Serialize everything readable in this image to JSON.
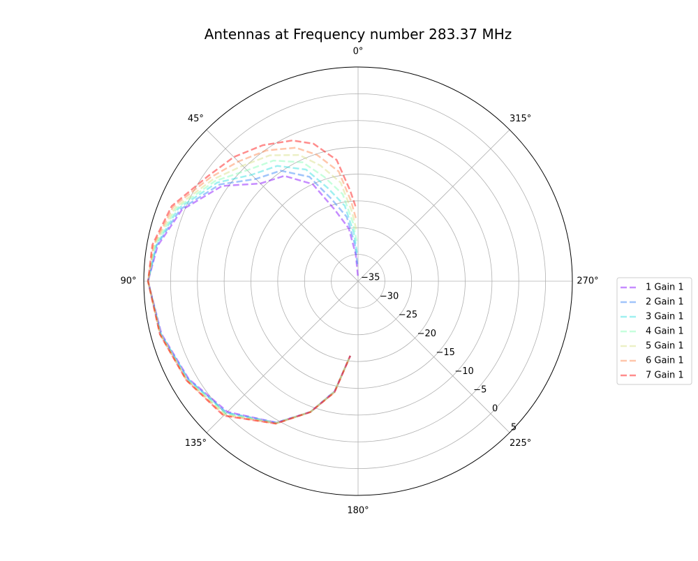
{
  "chart_data": {
    "type": "line",
    "subtype": "polar",
    "title": "Antennas at Frequency number 283.37 MHz",
    "theta_zero": "top",
    "theta_direction": "counterclockwise",
    "theta_ticks": [
      "0°",
      "45°",
      "90°",
      "135°",
      "180°",
      "225°",
      "270°",
      "315°"
    ],
    "r_ticks": [
      "−35",
      "−30",
      "−25",
      "−20",
      "−15",
      "−10",
      "−5",
      "0",
      "5"
    ],
    "r_tick_values": [
      -35,
      -30,
      -25,
      -20,
      -15,
      -10,
      -5,
      0,
      5
    ],
    "rlim": [
      -35,
      5
    ],
    "grid": true,
    "legend_placement": "right",
    "theta_deg": [
      2,
      5,
      10,
      18,
      25,
      35,
      45,
      55,
      68,
      80,
      90,
      105,
      120,
      135,
      150,
      160,
      168,
      174
    ],
    "series": [
      {
        "name": "1 Gain 1",
        "color": "#8000ff",
        "values": [
          -34,
          -30,
          -25,
          -21,
          -15,
          -11,
          -9.2,
          -4,
          0.5,
          3,
          4.2,
          3,
          1.5,
          -0.5,
          -4.5,
          -9,
          -14,
          -21
        ]
      },
      {
        "name": "2 Gain 1",
        "color": "#2c7ef7",
        "values": [
          -31.8,
          -28,
          -22.8,
          -18.8,
          -13.5,
          -9.8,
          -8.0,
          -3.5,
          0.8,
          3.2,
          4.2,
          3.1,
          1.6,
          -0.3,
          -4.5,
          -9,
          -14,
          -21
        ]
      },
      {
        "name": "3 Gain 1",
        "color": "#2adddd",
        "values": [
          -29.7,
          -26,
          -20.7,
          -16.7,
          -12,
          -8.7,
          -6.9,
          -2.9,
          1.2,
          3.3,
          4.2,
          3.1,
          1.7,
          -0.2,
          -4.4,
          -9,
          -13.9,
          -21
        ]
      },
      {
        "name": "4 Gain 1",
        "color": "#80ffb4",
        "values": [
          -27.5,
          -24,
          -18.5,
          -14.5,
          -10.5,
          -7.5,
          -5.7,
          -2.4,
          1.5,
          3.5,
          4.2,
          3.2,
          1.8,
          0,
          -4.4,
          -9,
          -13.9,
          -21
        ]
      },
      {
        "name": "5 Gain 1",
        "color": "#d4dd80",
        "values": [
          -25.3,
          -22,
          -16.3,
          -12.3,
          -9,
          -6.3,
          -4.5,
          -1.9,
          1.8,
          3.7,
          4.2,
          3.2,
          1.9,
          0.2,
          -4.4,
          -9,
          -13.9,
          -21
        ]
      },
      {
        "name": "6 Gain 1",
        "color": "#ff8044",
        "values": [
          -23.2,
          -20,
          -14.2,
          -10.2,
          -7.5,
          -5.2,
          -3.4,
          -1.3,
          2.2,
          3.8,
          4.2,
          3.3,
          2,
          0.4,
          -4.3,
          -9,
          -13.8,
          -21
        ]
      },
      {
        "name": "7 Gain 1",
        "color": "#ff0000",
        "values": [
          -21,
          -18,
          -12,
          -8,
          -6,
          -4,
          -2.2,
          -0.8,
          2.5,
          4,
          4.2,
          3.3,
          2,
          0.5,
          -4.3,
          -9,
          -13.8,
          -21
        ]
      }
    ]
  }
}
